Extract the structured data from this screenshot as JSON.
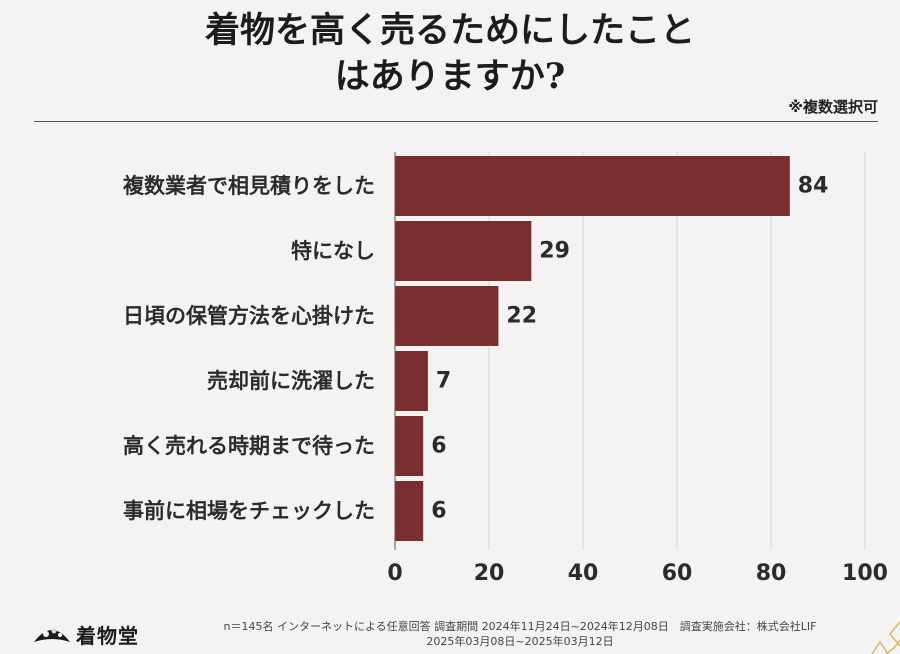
{
  "header": {
    "title_line1": "着物を高く売るためにしたこと",
    "title_line2": "はありますか?",
    "note": "※複数選択可"
  },
  "chart_data": {
    "type": "bar",
    "orientation": "horizontal",
    "categories": [
      "複数業者で相見積りをした",
      "特になし",
      "日頃の保管方法を心掛けた",
      "売却前に洗濯した",
      "高く売れる時期まで待った",
      "事前に相場をチェックした"
    ],
    "values": [
      84,
      29,
      22,
      7,
      6,
      6
    ],
    "xlim": [
      0,
      100
    ],
    "xticks": [
      0,
      20,
      40,
      60,
      80,
      100
    ],
    "bar_color": "#7a2e31",
    "grid": true
  },
  "footer": {
    "line1": "n＝145名 インターネットによる任意回答 調査期間 2024年11月24日~2024年12月08日　調査実施会社：株式会社LIF",
    "line2": "2025年03月08日~2025年03月12日"
  },
  "logo": {
    "text": "着物堂"
  }
}
